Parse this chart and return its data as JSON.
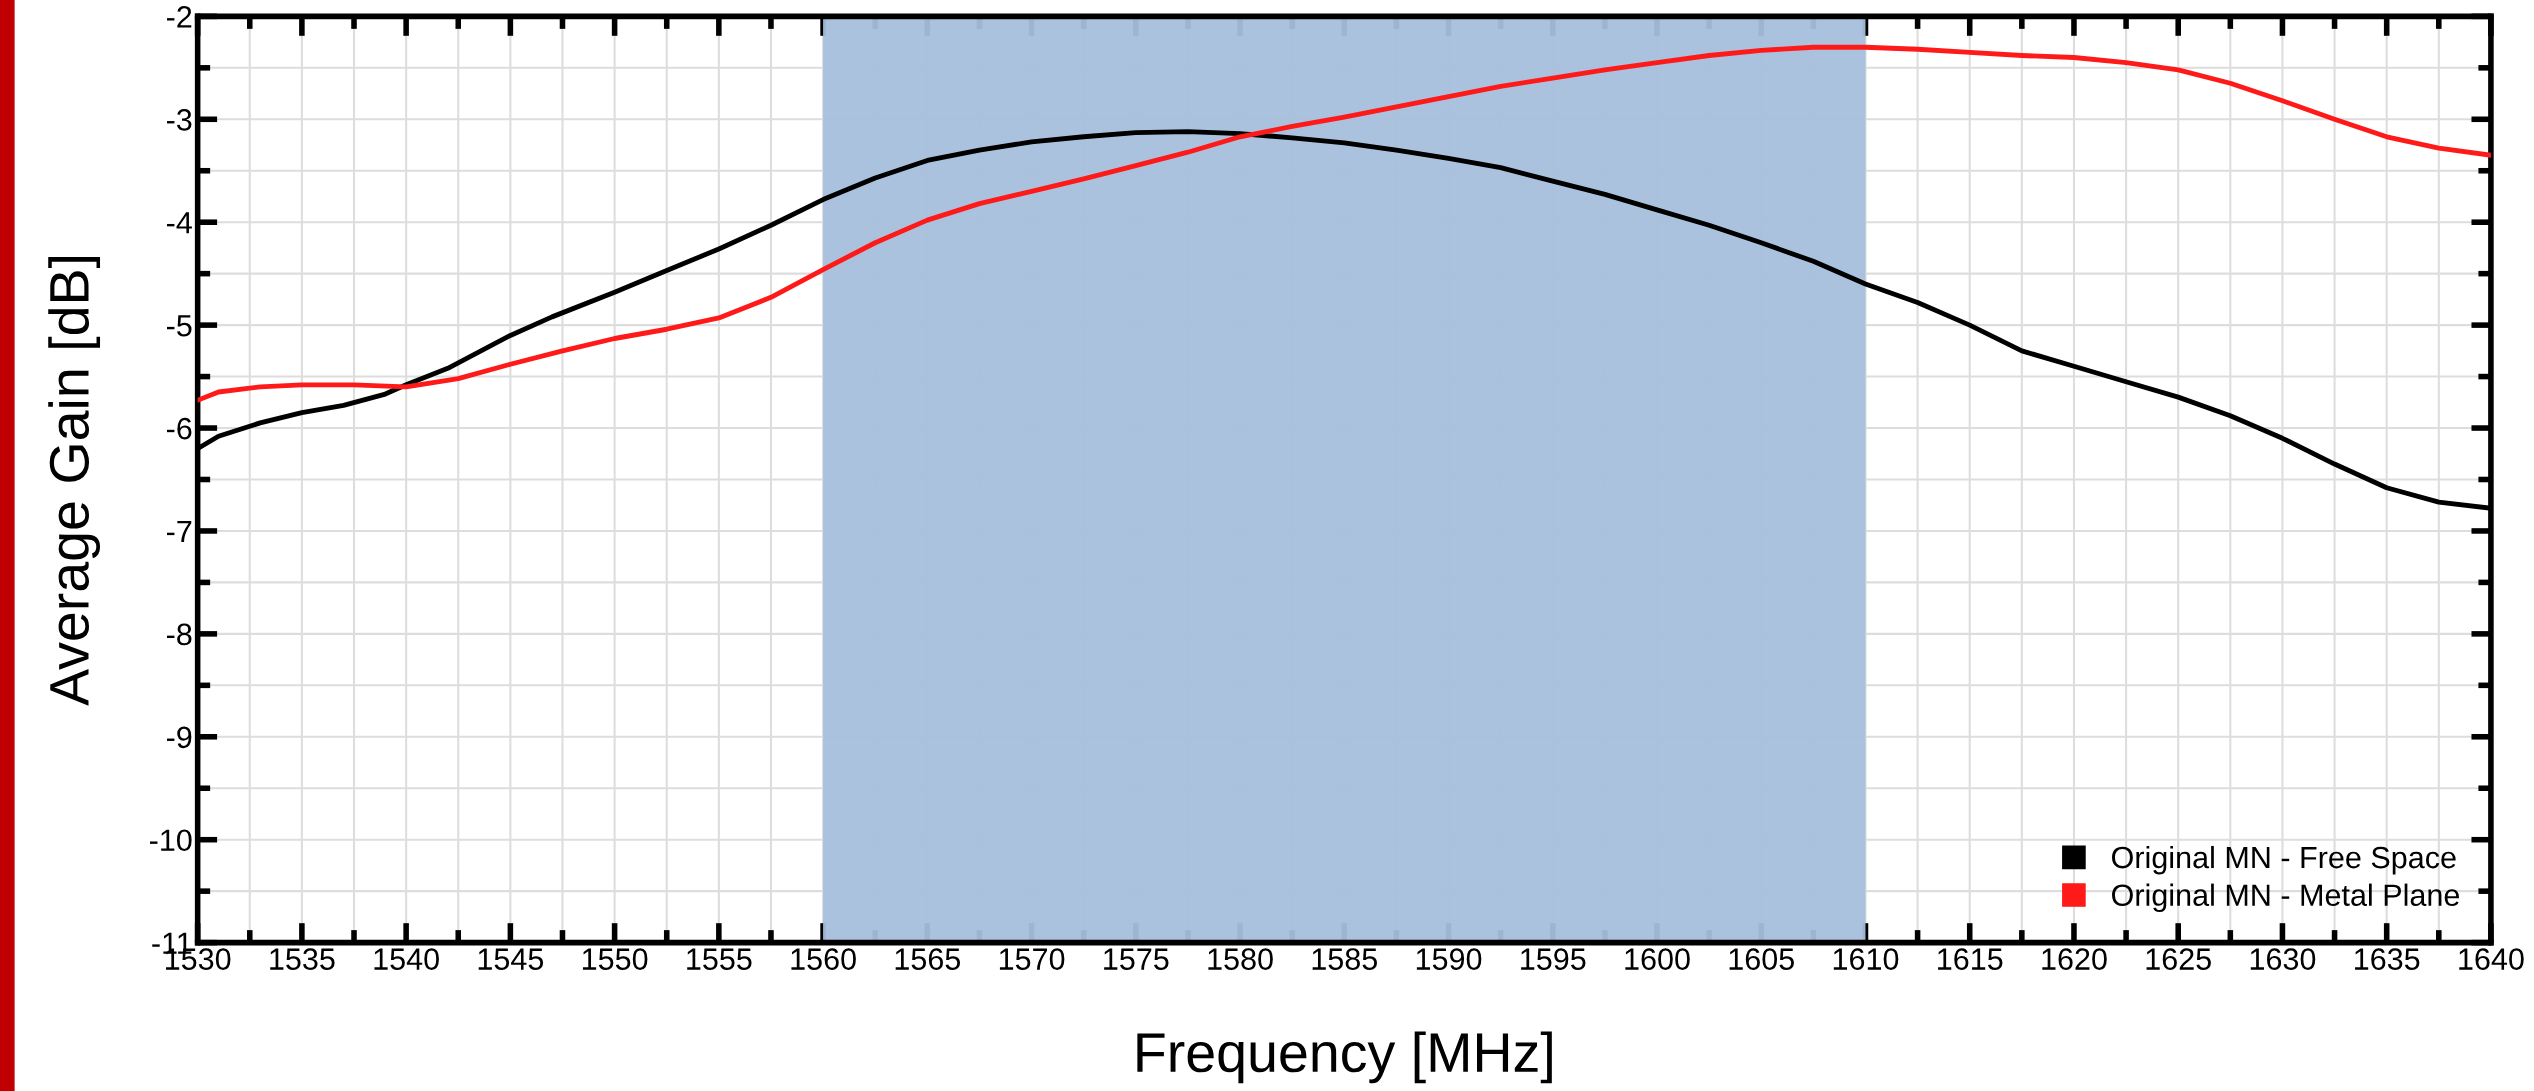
{
  "chart_data": {
    "type": "line",
    "xlabel": "Frequency [MHz]",
    "ylabel": "Average Gain [dB]",
    "xlim": [
      1530,
      1640
    ],
    "ylim": [
      -11,
      -2
    ],
    "xticks": [
      1530,
      1535,
      1540,
      1545,
      1550,
      1555,
      1560,
      1565,
      1570,
      1575,
      1580,
      1585,
      1590,
      1595,
      1600,
      1605,
      1610,
      1615,
      1620,
      1625,
      1630,
      1635,
      1640
    ],
    "yticks": [
      -11,
      -10,
      -9,
      -8,
      -7,
      -6,
      -5,
      -4,
      -3,
      -2
    ],
    "grid": true,
    "legend": "bottom right",
    "line_style": "solid",
    "marker": "none",
    "bands": [
      {
        "axis": "x",
        "from": 1560,
        "to": 1610,
        "color": "#a6bfdd"
      }
    ],
    "series": [
      {
        "name": "Original MN - Free Space",
        "color": "#000000",
        "x": [
          1530,
          1531,
          1533,
          1535,
          1537,
          1539,
          1540,
          1542,
          1545,
          1547,
          1550,
          1552.5,
          1555,
          1557.5,
          1560,
          1562.5,
          1565,
          1567.5,
          1570,
          1572.5,
          1575,
          1577.5,
          1580,
          1582.5,
          1585,
          1587.5,
          1590,
          1592.5,
          1595,
          1597.5,
          1600,
          1602.5,
          1605,
          1607.5,
          1610,
          1612.5,
          1615,
          1617.5,
          1620,
          1622.5,
          1625,
          1627.5,
          1630,
          1632.5,
          1635,
          1637.5,
          1640
        ],
        "values": [
          -6.2,
          -6.08,
          -5.95,
          -5.85,
          -5.78,
          -5.67,
          -5.58,
          -5.42,
          -5.1,
          -4.92,
          -4.68,
          -4.47,
          -4.26,
          -4.03,
          -3.78,
          -3.57,
          -3.4,
          -3.3,
          -3.22,
          -3.17,
          -3.13,
          -3.12,
          -3.14,
          -3.18,
          -3.23,
          -3.3,
          -3.38,
          -3.47,
          -3.6,
          -3.73,
          -3.88,
          -4.03,
          -4.2,
          -4.38,
          -4.6,
          -4.78,
          -5.0,
          -5.25,
          -5.4,
          -5.55,
          -5.7,
          -5.88,
          -6.1,
          -6.35,
          -6.58,
          -6.72,
          -6.78
        ]
      },
      {
        "name": "Original MN - Metal Plane",
        "color": "#ff1a1a",
        "x": [
          1530,
          1531,
          1533,
          1535,
          1537.5,
          1540,
          1542.5,
          1545,
          1547.5,
          1550,
          1552.5,
          1555,
          1557.5,
          1560,
          1562.5,
          1565,
          1567.5,
          1570,
          1572.5,
          1575,
          1577.5,
          1580,
          1582.5,
          1585,
          1587.5,
          1590,
          1592.5,
          1595,
          1597.5,
          1600,
          1602.5,
          1605,
          1607.5,
          1610,
          1612.5,
          1615,
          1617.5,
          1620,
          1622.5,
          1625,
          1627.5,
          1630,
          1632.5,
          1635,
          1637.5,
          1640
        ],
        "values": [
          -5.73,
          -5.65,
          -5.6,
          -5.58,
          -5.58,
          -5.6,
          -5.52,
          -5.38,
          -5.25,
          -5.13,
          -5.04,
          -4.93,
          -4.73,
          -4.46,
          -4.2,
          -3.98,
          -3.82,
          -3.7,
          -3.58,
          -3.45,
          -3.32,
          -3.17,
          -3.07,
          -2.98,
          -2.88,
          -2.78,
          -2.68,
          -2.6,
          -2.52,
          -2.45,
          -2.38,
          -2.33,
          -2.3,
          -2.3,
          -2.32,
          -2.35,
          -2.38,
          -2.4,
          -2.45,
          -2.52,
          -2.65,
          -2.82,
          -3.0,
          -3.17,
          -3.28,
          -3.35
        ]
      }
    ]
  }
}
